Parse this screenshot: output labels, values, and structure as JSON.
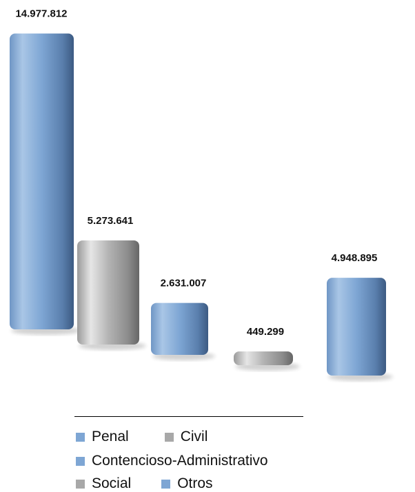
{
  "chart_data": {
    "type": "bar",
    "categories": [
      "Penal",
      "Civil",
      "Contencioso-Administrativo",
      "Social",
      "Otros"
    ],
    "values": [
      14977812,
      5273641,
      2631007,
      449299,
      4948895
    ],
    "value_labels": [
      "14.977.812",
      "5.273.641",
      "2.631.007",
      "449.299",
      "4.948.895"
    ],
    "colors": [
      "#7ea6d4",
      "#a8a8a8",
      "#7ea6d4",
      "#a8a8a8",
      "#7ea6d4"
    ],
    "title": "",
    "xlabel": "",
    "ylabel": "",
    "ylim": [
      0,
      15000000
    ],
    "grid": false,
    "legend_position": "bottom",
    "legend": [
      {
        "name": "Penal",
        "color": "#7ea6d4"
      },
      {
        "name": "Civil",
        "color": "#a8a8a8"
      },
      {
        "name": "Contencioso-Administrativo",
        "color": "#7ea6d4"
      },
      {
        "name": "Social",
        "color": "#a8a8a8"
      },
      {
        "name": "Otros",
        "color": "#7ea6d4"
      }
    ]
  }
}
